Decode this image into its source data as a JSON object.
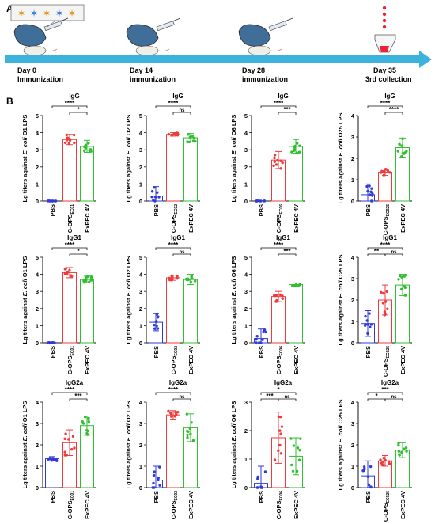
{
  "panel_a": {
    "label": "A",
    "timeline": [
      {
        "day": "Day 0",
        "event": "Immunization"
      },
      {
        "day": "Day 14",
        "event": "immunization"
      },
      {
        "day": "Day 28",
        "event": "immunization"
      },
      {
        "day": "Day 35",
        "event": "3rd collection"
      }
    ]
  },
  "panel_b": {
    "label": "B"
  },
  "colors": {
    "PBS": "#2f3bd8",
    "C-OPS": "#ee3b3b",
    "ExPEC 4V": "#2fbf2f",
    "arrow": "#3bb3dd"
  },
  "chart_data": [
    {
      "type": "bar",
      "title": "IgG",
      "ylabel_pre": "Lg titers against ",
      "ylabel_it": "E. coli",
      "ylabel_post": " O1 LPS",
      "categories": [
        "PBS",
        "C-OPS",
        "ExPEC 4V"
      ],
      "subscript": "EC01",
      "values": [
        0,
        3.6,
        3.2
      ],
      "errors": [
        0.02,
        0.3,
        0.35
      ],
      "ylim": [
        0,
        5
      ],
      "yticks": [
        "0",
        "1",
        "2",
        "3",
        "4",
        "5"
      ],
      "sig": [
        {
          "a": 0,
          "b": 2,
          "t": "****"
        },
        {
          "a": 1,
          "b": 2,
          "t": "*"
        }
      ]
    },
    {
      "type": "bar",
      "title": "IgG",
      "ylabel_pre": "Lg titers against ",
      "ylabel_it": "E. coli",
      "ylabel_post": " O2 LPS",
      "categories": [
        "PBS",
        "C-OPS",
        "ExPEC 4V"
      ],
      "subscript": "EC02",
      "values": [
        0.3,
        3.9,
        3.7
      ],
      "errors": [
        0.55,
        0.1,
        0.25
      ],
      "ylim": [
        0,
        5
      ],
      "yticks": [
        "0",
        "1",
        "2",
        "3",
        "4",
        "5"
      ],
      "sig": [
        {
          "a": 0,
          "b": 2,
          "t": "****"
        },
        {
          "a": 1,
          "b": 2,
          "t": "ns"
        }
      ]
    },
    {
      "type": "bar",
      "title": "IgG",
      "ylabel_pre": "Lg titers against ",
      "ylabel_it": "E. coli",
      "ylabel_post": " O6 LPS",
      "categories": [
        "PBS",
        "C-OPS",
        "ExPEC 4V"
      ],
      "subscript": "EC06",
      "values": [
        0,
        2.4,
        3.2
      ],
      "errors": [
        0.02,
        0.5,
        0.4
      ],
      "ylim": [
        0,
        5
      ],
      "yticks": [
        "0",
        "1",
        "2",
        "3",
        "4",
        "5"
      ],
      "sig": [
        {
          "a": 0,
          "b": 2,
          "t": "****"
        },
        {
          "a": 1,
          "b": 2,
          "t": "***"
        }
      ]
    },
    {
      "type": "bar",
      "title": "IgG",
      "ylabel_pre": "Lg titers against ",
      "ylabel_it": "E. coli",
      "ylabel_post": " O25 LPS",
      "categories": [
        "PBS",
        "C-OPS",
        "ExPEC 4V"
      ],
      "subscript": "EC025",
      "values": [
        0.3,
        1.35,
        2.5
      ],
      "errors": [
        0.5,
        0.15,
        0.45
      ],
      "ylim": [
        0,
        4
      ],
      "yticks": [
        "0",
        "1",
        "2",
        "3",
        "4"
      ],
      "sig": [
        {
          "a": 0,
          "b": 2,
          "t": "****"
        },
        {
          "a": 1,
          "b": 2,
          "t": "****"
        }
      ]
    },
    {
      "type": "bar",
      "title": "IgG1",
      "ylabel_pre": "Lg titers against ",
      "ylabel_it": "E. coli",
      "ylabel_post": " O1 LPS",
      "categories": [
        "PBS",
        "C-OPS",
        "ExPEC 4V"
      ],
      "subscript": "EC01",
      "values": [
        0,
        4.1,
        3.7
      ],
      "errors": [
        0.02,
        0.3,
        0.2
      ],
      "ylim": [
        0,
        5
      ],
      "yticks": [
        "0",
        "1",
        "2",
        "3",
        "4",
        "5"
      ],
      "sig": [
        {
          "a": 0,
          "b": 2,
          "t": "****"
        },
        {
          "a": 1,
          "b": 2,
          "t": "*"
        }
      ]
    },
    {
      "type": "bar",
      "title": "IgG1",
      "ylabel_pre": "Lg titers against ",
      "ylabel_it": "E. coli",
      "ylabel_post": " O2 LPS",
      "categories": [
        "PBS",
        "C-OPS",
        "ExPEC 4V"
      ],
      "subscript": "EC02",
      "values": [
        1.2,
        3.8,
        3.7
      ],
      "errors": [
        0.5,
        0.15,
        0.3
      ],
      "ylim": [
        0,
        5
      ],
      "yticks": [
        "0",
        "1",
        "2",
        "3",
        "4",
        "5"
      ],
      "sig": [
        {
          "a": 0,
          "b": 2,
          "t": "****"
        },
        {
          "a": 1,
          "b": 2,
          "t": "ns"
        }
      ]
    },
    {
      "type": "bar",
      "title": "IgG1",
      "ylabel_pre": "Lg titers against ",
      "ylabel_it": "E. coli",
      "ylabel_post": " O6 LPS",
      "categories": [
        "PBS",
        "C-OPS",
        "ExPEC 4V"
      ],
      "subscript": "EC06",
      "values": [
        0.25,
        2.7,
        3.4
      ],
      "errors": [
        0.55,
        0.3,
        0.1
      ],
      "ylim": [
        0,
        5
      ],
      "yticks": [
        "0",
        "1",
        "2",
        "3",
        "4",
        "5"
      ],
      "sig": [
        {
          "a": 0,
          "b": 2,
          "t": "****"
        },
        {
          "a": 1,
          "b": 2,
          "t": "***"
        }
      ]
    },
    {
      "type": "bar",
      "title": "IgG1",
      "ylabel_pre": "Lg titers against ",
      "ylabel_it": "E. coli",
      "ylabel_post": " O25 LPS",
      "categories": [
        "PBS",
        "C-OPS",
        "ExPEC 4V"
      ],
      "subscript": "EC025",
      "values": [
        0.9,
        2.0,
        2.7
      ],
      "errors": [
        0.6,
        0.7,
        0.5
      ],
      "ylim": [
        0,
        4
      ],
      "yticks": [
        "0",
        "1",
        "2",
        "3",
        "4"
      ],
      "sig": [
        {
          "a": 0,
          "b": 2,
          "t": "****"
        },
        {
          "a": 0,
          "b": 1,
          "t": "**"
        },
        {
          "a": 1,
          "b": 2,
          "t": "ns"
        }
      ]
    },
    {
      "type": "bar",
      "title": "IgG2a",
      "ylabel_pre": "Lg titers against ",
      "ylabel_it": "E. coli",
      "ylabel_post": " O1 LPS",
      "categories": [
        "PBS",
        "C-OPS",
        "ExPEC 4V"
      ],
      "subscript": "EC01",
      "values": [
        1.35,
        2.1,
        2.9
      ],
      "errors": [
        0.1,
        0.6,
        0.45
      ],
      "ylim": [
        0,
        4
      ],
      "yticks": [
        "0",
        "1",
        "2",
        "3",
        "4"
      ],
      "sig": [
        {
          "a": 0,
          "b": 2,
          "t": "****"
        },
        {
          "a": 1,
          "b": 2,
          "t": "***"
        }
      ]
    },
    {
      "type": "bar",
      "title": "IgG2a",
      "ylabel_pre": "Lg titers against ",
      "ylabel_it": "E. coli",
      "ylabel_post": " O2 LPS",
      "categories": [
        "PBS",
        "C-OPS",
        "ExPEC 4V"
      ],
      "subscript": "EC02",
      "values": [
        0.35,
        3.4,
        2.8
      ],
      "errors": [
        0.65,
        0.2,
        0.65
      ],
      "ylim": [
        0,
        4
      ],
      "yticks": [
        "0",
        "1",
        "2",
        "3",
        "4"
      ],
      "sig": [
        {
          "a": 0,
          "b": 2,
          "t": "****"
        },
        {
          "a": 1,
          "b": 2,
          "t": "ns"
        }
      ]
    },
    {
      "type": "bar",
      "title": "IgG2a",
      "ylabel_pre": "Lg titers against ",
      "ylabel_it": "E. coli",
      "ylabel_post": " O6 LPS",
      "categories": [
        "PBS",
        "C-OPS",
        "ExPEC 4V"
      ],
      "subscript": "EC06",
      "values": [
        0.15,
        1.75,
        1.1
      ],
      "errors": [
        0.6,
        0.9,
        0.65
      ],
      "ylim": [
        0,
        3
      ],
      "yticks": [
        "0",
        "1",
        "2",
        "3"
      ],
      "sig": [
        {
          "a": 0,
          "b": 2,
          "t": "*"
        },
        {
          "a": 0,
          "b": 1,
          "t": "***"
        },
        {
          "a": 1,
          "b": 2,
          "t": "ns"
        }
      ]
    },
    {
      "type": "bar",
      "title": "IgG2a",
      "ylabel_pre": "Lg titers against ",
      "ylabel_it": "E. coli",
      "ylabel_post": " O25 LPS",
      "categories": [
        "PBS",
        "C-OPS",
        "ExPEC 4V"
      ],
      "subscript": "EC025",
      "values": [
        0.55,
        1.25,
        1.75
      ],
      "errors": [
        0.7,
        0.25,
        0.35
      ],
      "ylim": [
        0,
        4
      ],
      "yticks": [
        "0",
        "1",
        "2",
        "3",
        "4"
      ],
      "sig": [
        {
          "a": 0,
          "b": 2,
          "t": "***"
        },
        {
          "a": 0,
          "b": 1,
          "t": "*"
        },
        {
          "a": 1,
          "b": 2,
          "t": "ns"
        }
      ]
    }
  ]
}
